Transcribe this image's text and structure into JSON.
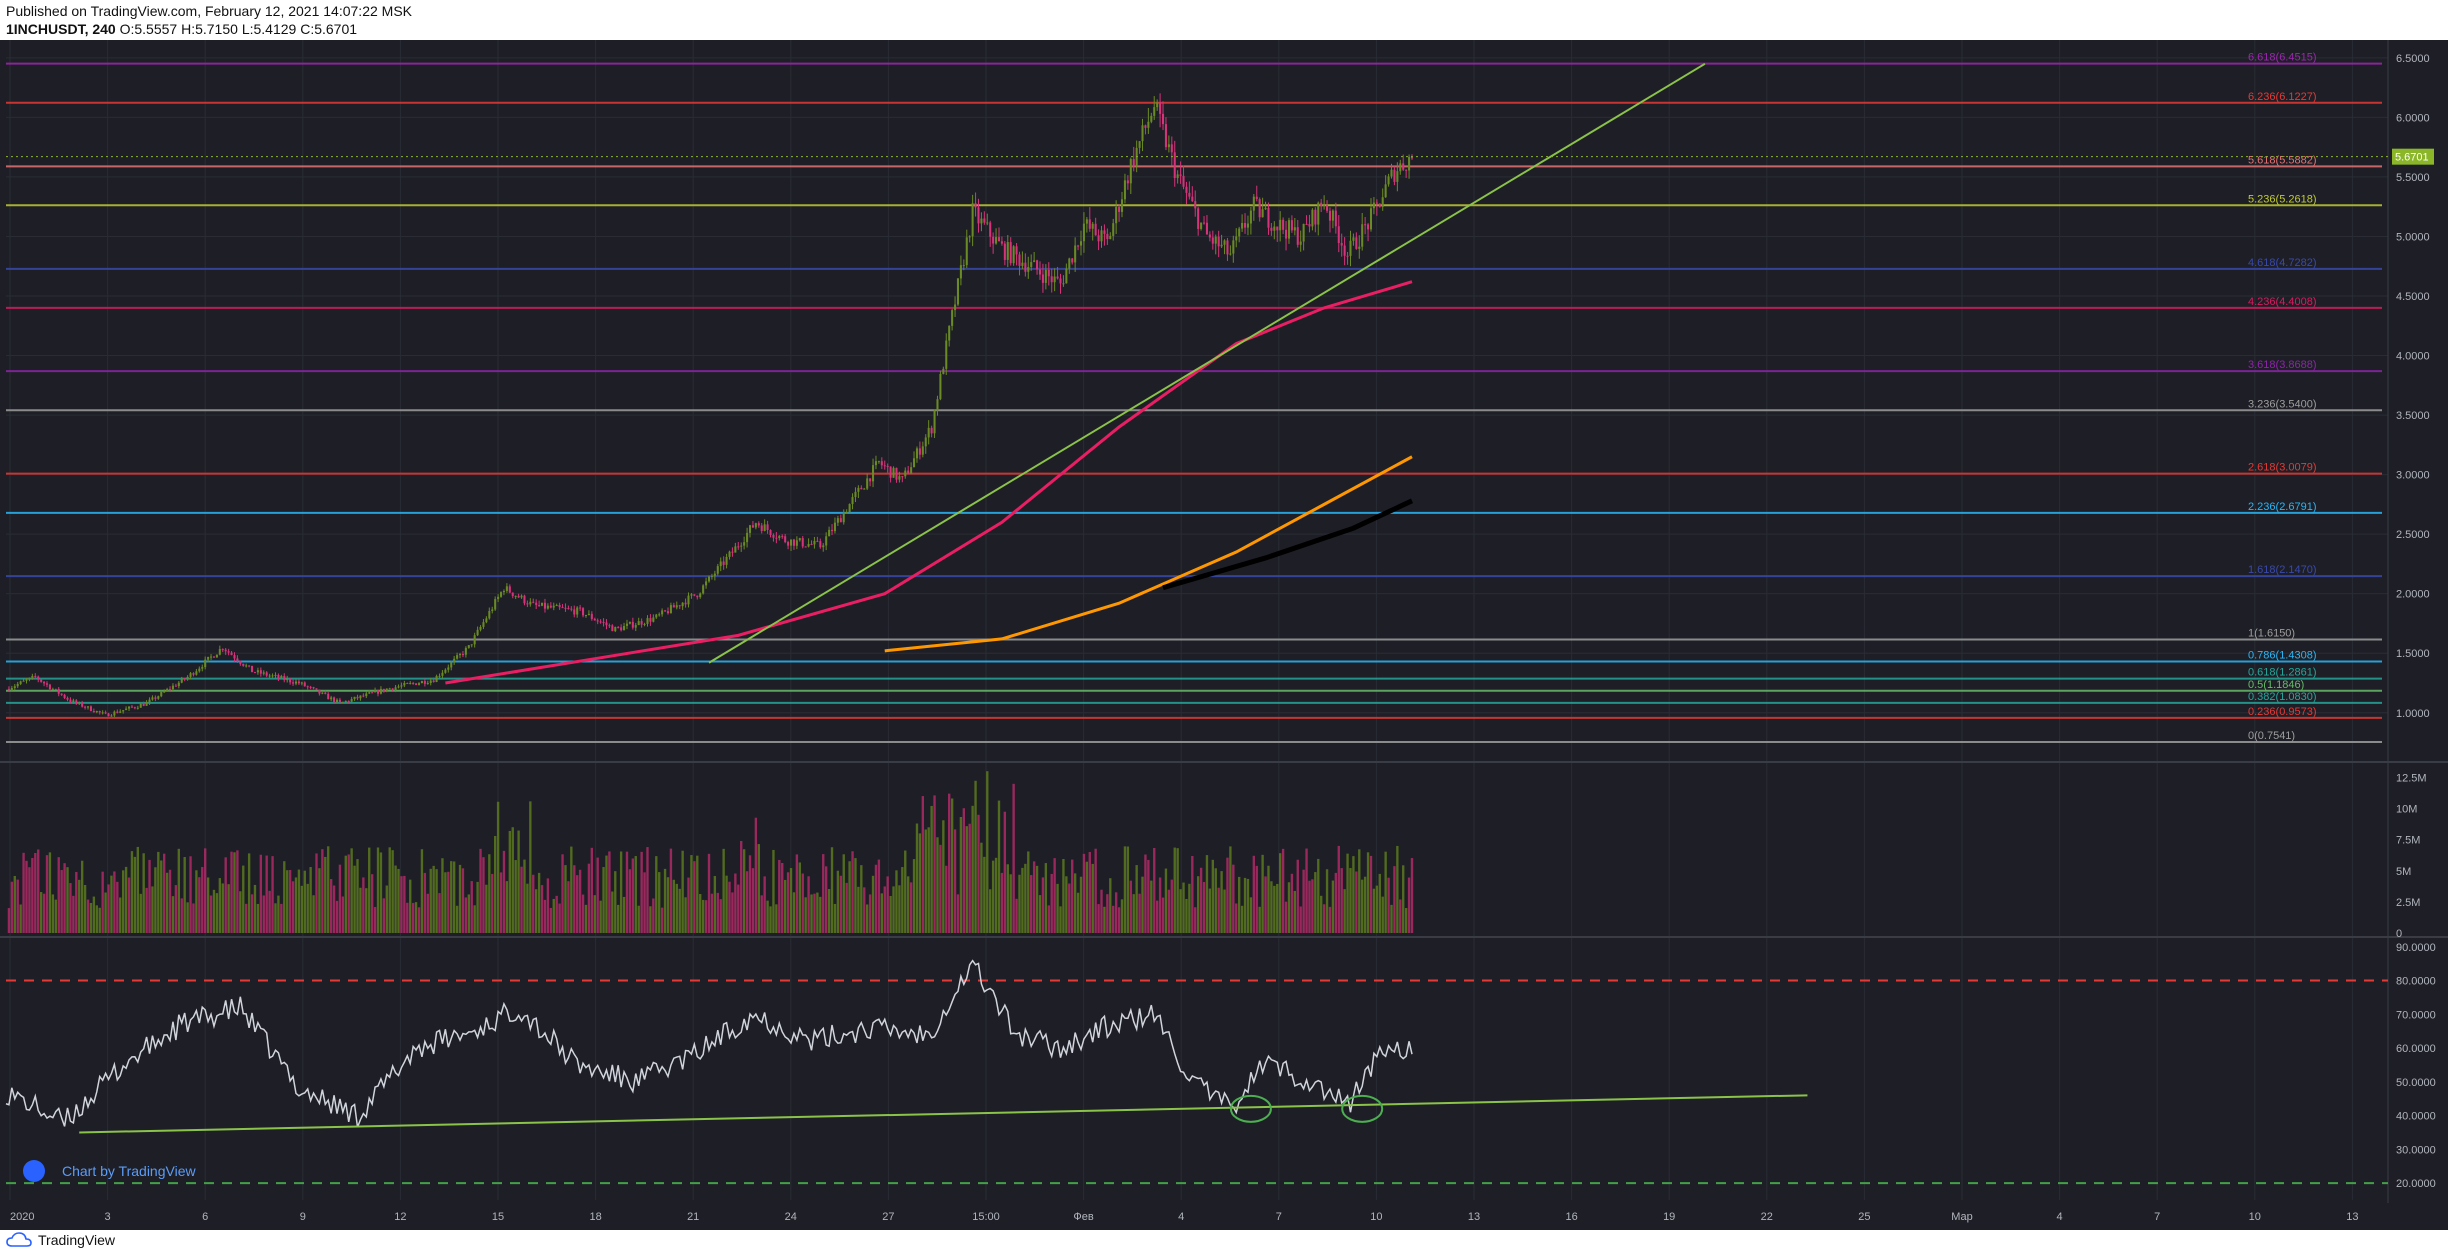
{
  "header": {
    "published": "Published on TradingView.com, February 12, 2021 14:07:22 MSK",
    "symbol": "1INCHUSDT, 240",
    "o_label": "O:",
    "o": "5.5557",
    "h_label": "H:",
    "h": "5.7150",
    "l_label": "L:",
    "l": "5.4129",
    "c_label": "C:",
    "c": "5.6701"
  },
  "footer": {
    "brand": "TradingView"
  },
  "watermark": {
    "text": "Chart by TradingView"
  },
  "colors": {
    "background": "#1e1f26",
    "up": "#6a8a24",
    "down": "#d6337a",
    "grid": "#2a2c35",
    "last_price": "#8ab628"
  },
  "chart_data": {
    "type": "candlestick",
    "price_axis": {
      "ticks": [
        "6.5000",
        "6.0000",
        "5.5000",
        "5.0000",
        "4.5000",
        "4.0000",
        "3.5000",
        "3.0000",
        "2.5000",
        "2.0000",
        "1.5000",
        "1.0000"
      ],
      "range": [
        0.62,
        6.65
      ]
    },
    "last_price": "5.6701",
    "time_axis": [
      "2020",
      "3",
      "6",
      "9",
      "12",
      "15",
      "18",
      "21",
      "24",
      "27",
      "15:00",
      "Фев",
      "4",
      "7",
      "10",
      "13",
      "16",
      "19",
      "22",
      "25",
      "Мар",
      "4",
      "7",
      "10",
      "13"
    ],
    "fib_levels": [
      {
        "label": "6.618(6.4515)",
        "value": 6.4515,
        "color": "#9c27b0"
      },
      {
        "label": "6.236(6.1227)",
        "value": 6.1227,
        "color": "#e53935"
      },
      {
        "label": "5.618(5.5882)",
        "value": 5.5882,
        "color": "#e57373"
      },
      {
        "label": "5.236(5.2618)",
        "value": 5.2618,
        "color": "#c0ca33"
      },
      {
        "label": "4.618(4.7282)",
        "value": 4.7282,
        "color": "#3949ab"
      },
      {
        "label": "4.236(4.4008)",
        "value": 4.4008,
        "color": "#d81b60"
      },
      {
        "label": "3.618(3.8688)",
        "value": 3.8688,
        "color": "#8e24aa"
      },
      {
        "label": "3.236(3.5400)",
        "value": 3.54,
        "color": "#9e9e9e"
      },
      {
        "label": "2.618(3.0079)",
        "value": 3.0079,
        "color": "#e53935"
      },
      {
        "label": "2.236(2.6791)",
        "value": 2.6791,
        "color": "#29b6f6"
      },
      {
        "label": "1.618(2.1470)",
        "value": 2.147,
        "color": "#3949ab"
      },
      {
        "label": "1(1.6150)",
        "value": 1.615,
        "color": "#9e9e9e"
      },
      {
        "label": "0.786(1.4308)",
        "value": 1.4308,
        "color": "#29b6f6"
      },
      {
        "label": "0.618(1.2861)",
        "value": 1.2861,
        "color": "#26a69a"
      },
      {
        "label": "0.5(1.1846)",
        "value": 1.1846,
        "color": "#66bb6a"
      },
      {
        "label": "0.382(1.0830)",
        "value": 1.083,
        "color": "#26a69a"
      },
      {
        "label": "0.236(0.9573)",
        "value": 0.9573,
        "color": "#e53935"
      },
      {
        "label": "0(0.7541)",
        "value": 0.7541,
        "color": "#9e9e9e"
      }
    ],
    "anchors": [
      {
        "t": 0,
        "p": 1.2
      },
      {
        "t": 10,
        "p": 1.3
      },
      {
        "t": 22,
        "p": 1.1
      },
      {
        "t": 34,
        "p": 0.98
      },
      {
        "t": 48,
        "p": 1.08
      },
      {
        "t": 62,
        "p": 1.3
      },
      {
        "t": 74,
        "p": 1.55
      },
      {
        "t": 84,
        "p": 1.35
      },
      {
        "t": 100,
        "p": 1.25
      },
      {
        "t": 114,
        "p": 1.08
      },
      {
        "t": 130,
        "p": 1.2
      },
      {
        "t": 146,
        "p": 1.28
      },
      {
        "t": 158,
        "p": 1.55
      },
      {
        "t": 170,
        "p": 2.05
      },
      {
        "t": 180,
        "p": 1.9
      },
      {
        "t": 196,
        "p": 1.85
      },
      {
        "t": 208,
        "p": 1.7
      },
      {
        "t": 222,
        "p": 1.8
      },
      {
        "t": 236,
        "p": 2.0
      },
      {
        "t": 248,
        "p": 2.35
      },
      {
        "t": 256,
        "p": 2.6
      },
      {
        "t": 266,
        "p": 2.45
      },
      {
        "t": 278,
        "p": 2.4
      },
      {
        "t": 288,
        "p": 2.75
      },
      {
        "t": 298,
        "p": 3.1
      },
      {
        "t": 306,
        "p": 2.95
      },
      {
        "t": 316,
        "p": 3.4
      },
      {
        "t": 322,
        "p": 4.2
      },
      {
        "t": 330,
        "p": 5.2
      },
      {
        "t": 340,
        "p": 4.9
      },
      {
        "t": 350,
        "p": 4.75
      },
      {
        "t": 360,
        "p": 4.6
      },
      {
        "t": 368,
        "p": 5.1
      },
      {
        "t": 376,
        "p": 4.95
      },
      {
        "t": 384,
        "p": 5.6
      },
      {
        "t": 392,
        "p": 6.1
      },
      {
        "t": 400,
        "p": 5.5
      },
      {
        "t": 410,
        "p": 5.0
      },
      {
        "t": 418,
        "p": 4.85
      },
      {
        "t": 426,
        "p": 5.25
      },
      {
        "t": 434,
        "p": 5.1
      },
      {
        "t": 442,
        "p": 5.0
      },
      {
        "t": 450,
        "p": 5.3
      },
      {
        "t": 458,
        "p": 4.85
      },
      {
        "t": 466,
        "p": 5.15
      },
      {
        "t": 474,
        "p": 5.55
      },
      {
        "t": 480,
        "p": 5.67
      }
    ],
    "moving_averages": [
      {
        "color": "#ff9800",
        "points": [
          [
            300,
            1.52
          ],
          [
            340,
            1.62
          ],
          [
            380,
            1.92
          ],
          [
            420,
            2.35
          ],
          [
            450,
            2.75
          ],
          [
            480,
            3.15
          ]
        ]
      },
      {
        "color": "#000000",
        "points": [
          [
            395,
            2.05
          ],
          [
            430,
            2.3
          ],
          [
            460,
            2.55
          ],
          [
            480,
            2.78
          ]
        ]
      },
      {
        "color": "#e91e63",
        "points": [
          [
            150,
            1.25
          ],
          [
            200,
            1.45
          ],
          [
            250,
            1.65
          ],
          [
            300,
            2.0
          ],
          [
            340,
            2.6
          ],
          [
            380,
            3.4
          ],
          [
            420,
            4.1
          ],
          [
            450,
            4.4
          ],
          [
            480,
            4.62
          ]
        ]
      }
    ],
    "trendline": {
      "color": "#8bc34a",
      "from": [
        240,
        1.42
      ],
      "to": [
        580,
        6.45
      ]
    },
    "volume": {
      "ticks": [
        "12.5M",
        "10M",
        "7.5M",
        "5M",
        "2.5M",
        "0"
      ],
      "max": 13.5
    },
    "rsi": {
      "ticks": [
        "90.0000",
        "80.0000",
        "70.0000",
        "60.0000",
        "50.0000",
        "40.0000",
        "30.0000",
        "20.0000"
      ],
      "overbought": 80,
      "oversold": 20,
      "anchors": [
        {
          "t": 0,
          "v": 47
        },
        {
          "t": 20,
          "v": 38
        },
        {
          "t": 40,
          "v": 55
        },
        {
          "t": 60,
          "v": 67
        },
        {
          "t": 80,
          "v": 72
        },
        {
          "t": 100,
          "v": 48
        },
        {
          "t": 120,
          "v": 40
        },
        {
          "t": 140,
          "v": 60
        },
        {
          "t": 160,
          "v": 65
        },
        {
          "t": 175,
          "v": 72
        },
        {
          "t": 195,
          "v": 55
        },
        {
          "t": 215,
          "v": 50
        },
        {
          "t": 235,
          "v": 58
        },
        {
          "t": 255,
          "v": 70
        },
        {
          "t": 275,
          "v": 62
        },
        {
          "t": 295,
          "v": 66
        },
        {
          "t": 315,
          "v": 64
        },
        {
          "t": 330,
          "v": 85
        },
        {
          "t": 345,
          "v": 64
        },
        {
          "t": 360,
          "v": 60
        },
        {
          "t": 375,
          "v": 66
        },
        {
          "t": 392,
          "v": 70
        },
        {
          "t": 405,
          "v": 50
        },
        {
          "t": 418,
          "v": 42
        },
        {
          "t": 430,
          "v": 56
        },
        {
          "t": 445,
          "v": 50
        },
        {
          "t": 458,
          "v": 43
        },
        {
          "t": 470,
          "v": 60
        },
        {
          "t": 480,
          "v": 60
        }
      ],
      "trendline": {
        "from": [
          25,
          35
        ],
        "to": [
          615,
          46
        ]
      },
      "circles": [
        425,
        463
      ]
    }
  }
}
